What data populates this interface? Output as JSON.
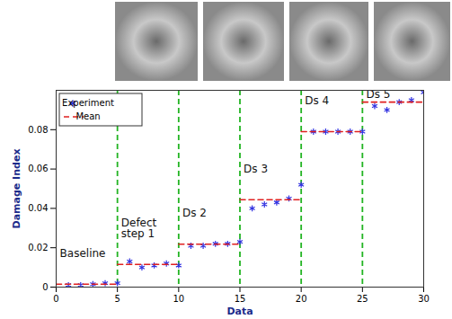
{
  "chart_data": {
    "type": "scatter",
    "xlabel": "Data",
    "ylabel": "Damage Index",
    "xlim": [
      0,
      30
    ],
    "xticks": [
      0,
      5,
      10,
      15,
      20,
      25,
      30
    ],
    "ylim": [
      0,
      0.1
    ],
    "yticks": [
      0,
      0.02,
      0.04,
      0.06,
      0.08
    ],
    "legend": "upper left",
    "series": [
      {
        "name": "Experiment",
        "type": "scatter",
        "color": "#3030e0",
        "marker": "asterisk",
        "x": [
          1,
          2,
          3,
          4,
          5,
          6,
          7,
          8,
          9,
          10,
          11,
          12,
          13,
          14,
          15,
          16,
          17,
          18,
          19,
          20,
          21,
          22,
          23,
          24,
          25,
          26,
          27,
          28,
          29,
          30
        ],
        "values": [
          0.001,
          0.001,
          0.0015,
          0.002,
          0.002,
          0.013,
          0.01,
          0.011,
          0.012,
          0.011,
          0.021,
          0.021,
          0.022,
          0.022,
          0.023,
          0.04,
          0.042,
          0.043,
          0.045,
          0.052,
          0.079,
          0.079,
          0.079,
          0.079,
          0.079,
          0.092,
          0.09,
          0.094,
          0.095,
          0.099
        ]
      },
      {
        "name": "Mean",
        "type": "line",
        "color": "#e02020",
        "line_style": "dashed",
        "x": [
          0,
          5,
          5,
          5,
          10,
          10,
          10,
          15,
          15,
          15,
          20,
          20,
          20,
          25,
          25,
          25,
          30
        ],
        "values": [
          0.0015,
          0.0015,
          null,
          0.0115,
          0.0115,
          null,
          0.0218,
          0.0218,
          null,
          0.0444,
          0.0444,
          null,
          0.079,
          0.079,
          null,
          0.094,
          0.094
        ]
      }
    ],
    "dividers": {
      "x": [
        5,
        10,
        15,
        20,
        25
      ],
      "color": "#22b422",
      "line_style": "dashed"
    },
    "annotations": [
      "Baseline",
      "Defect step 1",
      "Ds 2",
      "Ds 3",
      "Ds 4",
      "Ds 5"
    ]
  }
}
